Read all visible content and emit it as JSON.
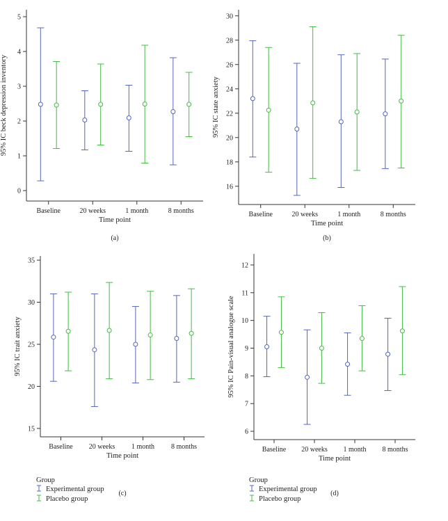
{
  "colors": {
    "experimental": "#5566bb",
    "placebo": "#44bb44"
  },
  "legend": {
    "title": "Group",
    "entries": [
      "Experimental group",
      "Placebo group"
    ]
  },
  "chart_data": [
    {
      "type": "errorbar",
      "panel_label": "(a)",
      "xlabel": "Time point",
      "ylabel": "95% IC beck depression inventory",
      "categories": [
        "Baseline",
        "20 weeks",
        "1 month",
        "8 months"
      ],
      "ylim": [
        -0.3,
        5.2
      ],
      "yticks": [
        0,
        1,
        2,
        3,
        4,
        5
      ],
      "series": [
        {
          "name": "Experimental group",
          "mean": [
            2.48,
            2.03,
            2.09,
            2.27
          ],
          "lower": [
            0.28,
            1.17,
            1.13,
            0.74
          ],
          "upper": [
            4.68,
            2.87,
            3.03,
            3.82
          ]
        },
        {
          "name": "Placebo group",
          "mean": [
            2.46,
            2.48,
            2.49,
            2.48
          ],
          "lower": [
            1.21,
            1.31,
            0.79,
            1.55
          ],
          "upper": [
            3.71,
            3.64,
            4.18,
            3.4
          ]
        }
      ]
    },
    {
      "type": "errorbar",
      "panel_label": "(b)",
      "xlabel": "Time point",
      "ylabel": "95% IC state anxiety",
      "categories": [
        "Baseline",
        "20 weeks",
        "1 month",
        "8 months"
      ],
      "ylim": [
        14.5,
        30.5
      ],
      "yticks": [
        16,
        18,
        20,
        22,
        24,
        26,
        28,
        30
      ],
      "series": [
        {
          "name": "Experimental group",
          "mean": [
            23.2,
            20.7,
            21.3,
            21.95
          ],
          "lower": [
            18.4,
            15.25,
            15.9,
            17.45
          ],
          "upper": [
            27.95,
            26.1,
            26.8,
            26.45
          ]
        },
        {
          "name": "Placebo group",
          "mean": [
            22.25,
            22.85,
            22.1,
            23.0
          ],
          "lower": [
            17.15,
            16.65,
            17.3,
            17.5
          ],
          "upper": [
            27.4,
            29.1,
            26.9,
            28.4
          ]
        }
      ]
    },
    {
      "type": "errorbar",
      "panel_label": "(c)",
      "xlabel": "Time point",
      "ylabel": "95% IC trait anxiety",
      "categories": [
        "Baseline",
        "20 weeks",
        "1 month",
        "8 months"
      ],
      "ylim": [
        14.0,
        35.5
      ],
      "yticks": [
        15,
        20,
        25,
        30,
        35
      ],
      "series": [
        {
          "name": "Experimental group",
          "mean": [
            25.85,
            24.35,
            25.0,
            25.7
          ],
          "lower": [
            20.6,
            17.6,
            20.4,
            20.5
          ],
          "upper": [
            31.0,
            31.0,
            29.5,
            30.8
          ]
        },
        {
          "name": "Placebo group",
          "mean": [
            26.55,
            26.65,
            26.1,
            26.3
          ],
          "lower": [
            21.85,
            20.9,
            20.8,
            20.9
          ],
          "upper": [
            31.2,
            32.35,
            31.3,
            31.6
          ]
        }
      ]
    },
    {
      "type": "errorbar",
      "panel_label": "(d)",
      "xlabel": "Time point",
      "ylabel": "95% IC Pain-visual analogue scale",
      "categories": [
        "Baseline",
        "20 weeks",
        "1 month",
        "8 months"
      ],
      "ylim": [
        5.7,
        12.4
      ],
      "yticks": [
        6,
        7,
        8,
        9,
        10,
        11,
        12
      ],
      "series": [
        {
          "name": "Experimental group",
          "mean": [
            9.05,
            7.95,
            8.42,
            8.78
          ],
          "lower": [
            7.97,
            6.25,
            7.3,
            7.47
          ],
          "upper": [
            10.15,
            9.66,
            9.55,
            10.08
          ]
        },
        {
          "name": "Placebo group",
          "mean": [
            9.57,
            9.0,
            9.35,
            9.62
          ],
          "lower": [
            8.3,
            7.73,
            8.18,
            8.04
          ],
          "upper": [
            10.85,
            10.28,
            10.53,
            11.22
          ]
        }
      ]
    }
  ]
}
